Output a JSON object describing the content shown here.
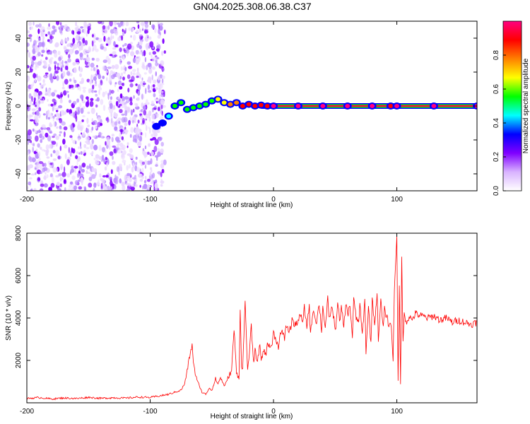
{
  "title": "GN04.2025.308.06.38.C37",
  "chart_data": [
    {
      "type": "heatmap",
      "xlabel": "Height of straight line (km)",
      "ylabel": "Frequency (Hz)",
      "xlim": [
        -200,
        165
      ],
      "ylim": [
        -50,
        50
      ],
      "x_ticks": [
        -200,
        -100,
        0,
        100
      ],
      "y_ticks": [
        -40,
        -20,
        0,
        20,
        40
      ],
      "colorbar": {
        "label": "Normalized spectral amplitude",
        "range": [
          0,
          1
        ],
        "ticks": [
          0.0,
          0.2,
          0.4,
          0.6,
          0.8
        ],
        "colors": [
          "#ffffff",
          "#d9b3ff",
          "#8000ff",
          "#0000ff",
          "#00ffff",
          "#00ff00",
          "#ffff00",
          "#ff8000",
          "#ff0000",
          "#ff0080"
        ]
      },
      "noise_region_x": [
        -200,
        -88
      ],
      "signal_ridge": {
        "x": [
          -95,
          -90,
          -85,
          -80,
          -75,
          -70,
          -65,
          -60,
          -55,
          -50,
          -45,
          -40,
          -35,
          -30,
          -25,
          -20,
          -15,
          -10,
          -5,
          0,
          20,
          40,
          60,
          80,
          95,
          100,
          130,
          165
        ],
        "freq": [
          -12,
          -10,
          -6,
          0,
          2,
          -2,
          -1,
          0,
          1,
          3,
          4,
          2,
          1,
          2,
          0,
          1,
          0,
          0.5,
          0,
          0,
          0,
          0,
          0,
          0,
          0,
          0,
          0,
          0
        ],
        "amplitude": [
          0.3,
          0.35,
          0.45,
          0.5,
          0.5,
          0.5,
          0.55,
          0.5,
          0.6,
          0.6,
          0.65,
          0.7,
          0.75,
          0.8,
          0.85,
          0.85,
          0.9,
          0.9,
          0.9,
          0.95,
          0.95,
          0.95,
          0.95,
          0.95,
          0.9,
          0.95,
          0.95,
          0.95
        ]
      }
    },
    {
      "type": "line",
      "xlabel": "Height of straight line (km)",
      "ylabel": "SNR (10 * v/v)",
      "xlim": [
        -200,
        165
      ],
      "ylim": [
        0,
        8000
      ],
      "x_ticks": [
        -200,
        -100,
        0,
        100
      ],
      "y_ticks": [
        2000,
        4000,
        6000,
        8000
      ],
      "color": "#ff0000",
      "series": [
        {
          "x": [
            -200,
            -190,
            -180,
            -170,
            -160,
            -150,
            -140,
            -130,
            -120,
            -110,
            -100,
            -95,
            -90,
            -85,
            -80,
            -75,
            -72,
            -70,
            -68,
            -66,
            -65,
            -63,
            -60,
            -58,
            -55,
            -52,
            -50,
            -47,
            -45,
            -43,
            -40,
            -38,
            -36,
            -34,
            -32,
            -30,
            -28,
            -27,
            -26,
            -25,
            -23,
            -21,
            -20,
            -18,
            -16,
            -15,
            -13,
            -11,
            -10,
            -8,
            -6,
            -5,
            -3,
            -1,
            0,
            2,
            4,
            5,
            7,
            9,
            10,
            12,
            14,
            15,
            17,
            19,
            20,
            22,
            24,
            25,
            27,
            29,
            30,
            32,
            34,
            35,
            37,
            39,
            40,
            42,
            44,
            45,
            47,
            49,
            50,
            52,
            54,
            55,
            57,
            59,
            60,
            62,
            64,
            65,
            67,
            69,
            70,
            72,
            74,
            75,
            77,
            79,
            80,
            82,
            84,
            85,
            87,
            89,
            90,
            92,
            94,
            95,
            96,
            97,
            98,
            99,
            100,
            101,
            102,
            103,
            104,
            105,
            106,
            108,
            110,
            112,
            115,
            120,
            125,
            130,
            135,
            140,
            145,
            150,
            155,
            160,
            165
          ],
          "y": [
            200,
            250,
            180,
            230,
            200,
            260,
            210,
            240,
            220,
            270,
            250,
            300,
            350,
            400,
            500,
            600,
            900,
            1500,
            2200,
            2700,
            2000,
            1200,
            800,
            500,
            400,
            700,
            600,
            1100,
            900,
            1200,
            800,
            1000,
            1300,
            1500,
            3500,
            1400,
            1200,
            4400,
            1800,
            1600,
            4800,
            1500,
            2000,
            3600,
            1800,
            2500,
            1900,
            2800,
            2000,
            2500,
            2200,
            2900,
            2600,
            2800,
            3300,
            3000,
            2600,
            3200,
            3300,
            3000,
            3700,
            3400,
            3500,
            4000,
            3600,
            3800,
            3900,
            4100,
            3800,
            4500,
            3600,
            4600,
            3200,
            4400,
            4000,
            3800,
            4700,
            3400,
            4600,
            3500,
            4900,
            3900,
            4500,
            4000,
            3300,
            4700,
            3800,
            4500,
            3600,
            4800,
            4100,
            4600,
            3100,
            4900,
            4000,
            3800,
            4600,
            3200,
            4800,
            2400,
            4500,
            2800,
            4900,
            3700,
            5200,
            3000,
            4800,
            3500,
            4400,
            4000,
            3600,
            3900,
            3000,
            2000,
            5400,
            6600,
            8000,
            1000,
            5500,
            900,
            7000,
            2800,
            4200,
            3800,
            4100,
            3900,
            4200,
            4100,
            4000,
            4100,
            3900,
            4000,
            3800,
            3900,
            3800,
            3700,
            3800
          ]
        }
      ]
    }
  ]
}
